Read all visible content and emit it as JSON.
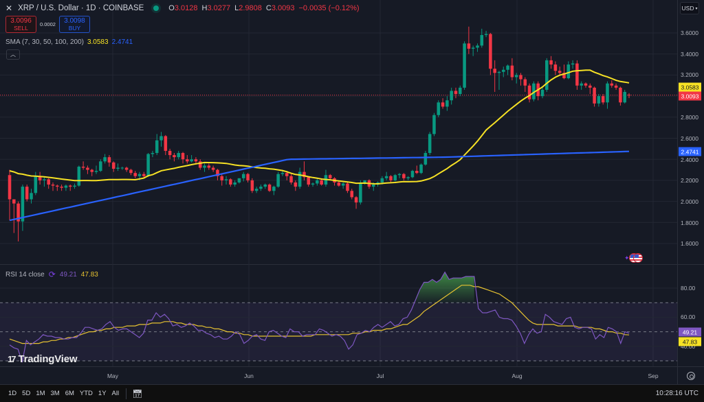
{
  "header": {
    "close_icon": "x-icon",
    "symbol_title": "XRP / U.S. Dollar · 1D · COINBASE",
    "market_status_icon": "market-open-dot",
    "ohlc": {
      "open_label": "O",
      "open": "3.0128",
      "high_label": "H",
      "high": "3.0277",
      "low_label": "L",
      "low": "2.9808",
      "close_label": "C",
      "close": "3.0093",
      "change": "−0.0035 (−0.12%)"
    }
  },
  "trade": {
    "sell_price": "3.0096",
    "sell_label": "SELL",
    "spread": "0.0002",
    "buy_price": "3.0098",
    "buy_label": "BUY"
  },
  "indicators": {
    "sma": {
      "label": "SMA (7, 30, 50, 100, 200)",
      "value1": "3.0583",
      "value2": "2.4741"
    },
    "collapse_icon": "chevron-up-icon",
    "rsi": {
      "label": "RSI 14 close",
      "icon": "loading-icon",
      "value": "49.21",
      "ma_value": "47.83"
    }
  },
  "currency_selector": {
    "label": "USD",
    "icon": "chevron-down-icon"
  },
  "price_axis": {
    "ticks": [
      "3.6000",
      "3.4000",
      "3.2000",
      "2.8000",
      "2.6000",
      "2.4000",
      "2.2000",
      "2.0000",
      "1.8000",
      "1.6000"
    ],
    "tags": {
      "sma_yellow": "3.0583",
      "last_price": "3.0093",
      "sma_blue": "2.4741"
    }
  },
  "rsi_axis": {
    "ticks": [
      "80.00",
      "60.00",
      "40.00"
    ],
    "tags": {
      "rsi": "49.21",
      "rsi_ma": "47.83"
    }
  },
  "time_axis": {
    "ticks": [
      "May",
      "Jun",
      "Jul",
      "Aug",
      "Sep"
    ]
  },
  "watermark": "TradingView",
  "bottom_bar": {
    "ranges": [
      "1D",
      "5D",
      "1M",
      "3M",
      "6M",
      "YTD",
      "1Y",
      "All"
    ],
    "goto_icon": "calendar-goto-icon",
    "clock": "10:28:16 UTC"
  },
  "colors": {
    "up": "#089981",
    "down": "#f23645",
    "sma_yellow": "#f7e225",
    "sma_blue": "#2962ff",
    "rsi_line": "#7e57c2",
    "rsi_ma": "#e6c231",
    "background": "#161a25",
    "grid": "#232733"
  },
  "chart_data": [
    {
      "type": "candlestick",
      "title": "XRP / U.S. Dollar · 1D · COINBASE",
      "ylabel": "USD",
      "ylim": [
        1.5,
        3.7
      ],
      "x_ticks": [
        "May",
        "Jun",
        "Jul",
        "Aug",
        "Sep"
      ],
      "grid": true,
      "last": {
        "open": 3.0128,
        "high": 3.0277,
        "low": 2.9808,
        "close": 3.0093
      },
      "ohlc": [
        [
          2.25,
          2.3,
          1.82,
          2.02
        ],
        [
          2.02,
          1.98,
          1.7,
          1.98
        ],
        [
          1.98,
          2.0,
          1.62,
          1.81
        ],
        [
          1.81,
          2.16,
          1.72,
          2.14
        ],
        [
          2.14,
          2.16,
          2.0,
          2.02
        ],
        [
          2.02,
          2.12,
          1.98,
          2.08
        ],
        [
          2.08,
          2.28,
          2.06,
          2.24
        ],
        [
          2.24,
          2.28,
          2.16,
          2.2
        ],
        [
          2.2,
          2.23,
          2.14,
          2.21
        ],
        [
          2.21,
          2.22,
          2.12,
          2.16
        ],
        [
          2.16,
          2.18,
          2.1,
          2.15
        ],
        [
          2.15,
          2.16,
          2.1,
          2.14
        ],
        [
          2.14,
          2.16,
          2.1,
          2.13
        ],
        [
          2.13,
          2.16,
          2.1,
          2.15
        ],
        [
          2.15,
          2.16,
          2.1,
          2.14
        ],
        [
          2.14,
          2.17,
          2.12,
          2.15
        ],
        [
          2.15,
          2.34,
          2.14,
          2.33
        ],
        [
          2.33,
          2.38,
          2.3,
          2.32
        ],
        [
          2.32,
          2.34,
          2.26,
          2.3
        ],
        [
          2.3,
          2.31,
          2.24,
          2.28
        ],
        [
          2.28,
          2.34,
          2.26,
          2.29
        ],
        [
          2.29,
          2.4,
          2.28,
          2.38
        ],
        [
          2.38,
          2.45,
          2.36,
          2.42
        ],
        [
          2.42,
          2.44,
          2.33,
          2.37
        ],
        [
          2.37,
          2.38,
          2.28,
          2.31
        ],
        [
          2.31,
          2.36,
          2.29,
          2.32
        ],
        [
          2.32,
          2.33,
          2.3,
          2.32
        ],
        [
          2.32,
          2.33,
          2.28,
          2.3
        ],
        [
          2.3,
          2.31,
          2.25,
          2.27
        ],
        [
          2.27,
          2.29,
          2.22,
          2.24
        ],
        [
          2.24,
          2.28,
          2.2,
          2.26
        ],
        [
          2.26,
          2.28,
          2.22,
          2.24
        ],
        [
          2.24,
          2.46,
          2.23,
          2.45
        ],
        [
          2.45,
          2.48,
          2.42,
          2.46
        ],
        [
          2.46,
          2.64,
          2.44,
          2.58
        ],
        [
          2.58,
          2.66,
          2.52,
          2.62
        ],
        [
          2.62,
          2.63,
          2.44,
          2.48
        ],
        [
          2.48,
          2.5,
          2.4,
          2.44
        ],
        [
          2.44,
          2.46,
          2.38,
          2.42
        ],
        [
          2.42,
          2.48,
          2.4,
          2.46
        ],
        [
          2.46,
          2.47,
          2.36,
          2.4
        ],
        [
          2.4,
          2.44,
          2.36,
          2.38
        ],
        [
          2.38,
          2.44,
          2.37,
          2.4
        ],
        [
          2.4,
          2.42,
          2.35,
          2.38
        ],
        [
          2.38,
          2.4,
          2.3,
          2.32
        ],
        [
          2.32,
          2.36,
          2.28,
          2.34
        ],
        [
          2.34,
          2.36,
          2.3,
          2.32
        ],
        [
          2.32,
          2.34,
          2.28,
          2.3
        ],
        [
          2.3,
          2.31,
          2.2,
          2.24
        ],
        [
          2.24,
          2.26,
          2.15,
          2.2
        ],
        [
          2.2,
          2.24,
          2.16,
          2.21
        ],
        [
          2.21,
          2.22,
          2.14,
          2.16
        ],
        [
          2.16,
          2.2,
          2.14,
          2.18
        ],
        [
          2.18,
          2.22,
          2.17,
          2.22
        ],
        [
          2.22,
          2.28,
          2.19,
          2.26
        ],
        [
          2.26,
          2.27,
          2.18,
          2.2
        ],
        [
          2.2,
          2.22,
          2.08,
          2.1
        ],
        [
          2.1,
          2.14,
          2.08,
          2.12
        ],
        [
          2.12,
          2.16,
          2.1,
          2.14
        ],
        [
          2.14,
          2.17,
          2.12,
          2.16
        ],
        [
          2.16,
          2.17,
          2.09,
          2.1
        ],
        [
          2.1,
          2.15,
          2.06,
          2.14
        ],
        [
          2.14,
          2.28,
          2.13,
          2.26
        ],
        [
          2.26,
          2.3,
          2.24,
          2.27
        ],
        [
          2.27,
          2.29,
          2.2,
          2.24
        ],
        [
          2.24,
          2.26,
          2.16,
          2.18
        ],
        [
          2.18,
          2.2,
          2.1,
          2.14
        ],
        [
          2.14,
          2.32,
          2.12,
          2.28
        ],
        [
          2.28,
          2.38,
          2.2,
          2.23
        ],
        [
          2.23,
          2.24,
          2.14,
          2.16
        ],
        [
          2.16,
          2.18,
          2.14,
          2.17
        ],
        [
          2.17,
          2.22,
          2.15,
          2.2
        ],
        [
          2.2,
          2.22,
          2.15,
          2.16
        ],
        [
          2.16,
          2.3,
          2.14,
          2.25
        ],
        [
          2.25,
          2.26,
          2.2,
          2.22
        ],
        [
          2.22,
          2.23,
          2.15,
          2.18
        ],
        [
          2.18,
          2.19,
          2.14,
          2.15
        ],
        [
          2.15,
          2.18,
          2.12,
          2.17
        ],
        [
          2.17,
          2.19,
          2.08,
          2.1
        ],
        [
          2.1,
          2.12,
          2.02,
          2.04
        ],
        [
          2.04,
          2.05,
          1.93,
          1.99
        ],
        [
          1.99,
          2.2,
          1.97,
          2.18
        ],
        [
          2.18,
          2.2,
          2.16,
          2.2
        ],
        [
          2.2,
          2.21,
          2.12,
          2.14
        ],
        [
          2.14,
          2.18,
          2.1,
          2.16
        ],
        [
          2.16,
          2.19,
          2.14,
          2.18
        ],
        [
          2.18,
          2.24,
          2.16,
          2.22
        ],
        [
          2.22,
          2.28,
          2.2,
          2.24
        ],
        [
          2.24,
          2.25,
          2.18,
          2.2
        ],
        [
          2.2,
          2.26,
          2.19,
          2.25
        ],
        [
          2.25,
          2.27,
          2.22,
          2.26
        ],
        [
          2.26,
          2.27,
          2.2,
          2.22
        ],
        [
          2.22,
          2.24,
          2.2,
          2.23
        ],
        [
          2.23,
          2.3,
          2.22,
          2.29
        ],
        [
          2.29,
          2.34,
          2.26,
          2.27
        ],
        [
          2.27,
          2.36,
          2.26,
          2.35
        ],
        [
          2.35,
          2.48,
          2.34,
          2.46
        ],
        [
          2.46,
          2.66,
          2.44,
          2.64
        ],
        [
          2.64,
          2.84,
          2.62,
          2.82
        ],
        [
          2.82,
          2.96,
          2.8,
          2.94
        ],
        [
          2.94,
          2.98,
          2.88,
          2.9
        ],
        [
          2.9,
          3.0,
          2.86,
          2.96
        ],
        [
          2.96,
          3.08,
          2.92,
          3.05
        ],
        [
          3.05,
          3.08,
          2.98,
          3.02
        ],
        [
          3.02,
          3.1,
          3.0,
          3.08
        ],
        [
          3.08,
          3.52,
          3.06,
          3.5
        ],
        [
          3.5,
          3.66,
          3.4,
          3.45
        ],
        [
          3.45,
          3.48,
          3.38,
          3.46
        ],
        [
          3.46,
          3.5,
          3.42,
          3.48
        ],
        [
          3.48,
          3.64,
          3.46,
          3.58
        ],
        [
          3.58,
          3.62,
          3.56,
          3.59
        ],
        [
          3.59,
          3.6,
          3.2,
          3.26
        ],
        [
          3.26,
          3.34,
          3.04,
          3.22
        ],
        [
          3.22,
          3.24,
          3.06,
          3.23
        ],
        [
          3.23,
          3.28,
          3.18,
          3.25
        ],
        [
          3.25,
          3.3,
          3.2,
          3.29
        ],
        [
          3.29,
          3.36,
          3.15,
          3.18
        ],
        [
          3.18,
          3.22,
          3.12,
          3.2
        ],
        [
          3.2,
          3.22,
          3.1,
          3.16
        ],
        [
          3.16,
          3.18,
          3.04,
          3.1
        ],
        [
          3.1,
          3.12,
          2.94,
          2.97
        ],
        [
          2.97,
          3.14,
          2.95,
          3.12
        ],
        [
          3.12,
          3.14,
          2.96,
          3.0
        ],
        [
          3.0,
          3.08,
          2.98,
          3.06
        ],
        [
          3.06,
          3.36,
          3.04,
          3.34
        ],
        [
          3.34,
          3.38,
          3.26,
          3.3
        ],
        [
          3.3,
          3.33,
          3.2,
          3.24
        ],
        [
          3.24,
          3.28,
          3.2,
          3.22
        ],
        [
          3.22,
          3.3,
          3.16,
          3.17
        ],
        [
          3.17,
          3.33,
          3.16,
          3.3
        ],
        [
          3.3,
          3.34,
          3.26,
          3.31
        ],
        [
          3.31,
          3.34,
          3.06,
          3.1
        ],
        [
          3.1,
          3.14,
          3.06,
          3.12
        ],
        [
          3.12,
          3.13,
          3.08,
          3.1
        ],
        [
          3.1,
          3.12,
          3.02,
          3.08
        ],
        [
          3.08,
          3.09,
          2.9,
          2.93
        ],
        [
          2.93,
          3.02,
          2.9,
          3.0
        ],
        [
          3.0,
          3.02,
          2.92,
          2.94
        ],
        [
          2.94,
          3.14,
          2.88,
          3.12
        ],
        [
          3.12,
          3.15,
          3.08,
          3.1
        ],
        [
          3.1,
          3.12,
          3.06,
          3.08
        ],
        [
          3.08,
          3.09,
          2.91,
          2.94
        ],
        [
          2.94,
          3.06,
          2.93,
          3.04
        ],
        [
          3.0128,
          3.0277,
          2.9808,
          3.0093
        ]
      ]
    },
    {
      "type": "line",
      "title": "RSI 14 close",
      "ylim": [
        25,
        95
      ],
      "bands": {
        "upper": 70,
        "middle": 50,
        "lower": 30
      },
      "series": [
        {
          "name": "RSI",
          "color": "#7e57c2",
          "last": 49.21,
          "values": [
            41,
            39,
            38,
            29,
            44,
            41,
            43,
            45,
            48,
            47,
            47,
            46,
            46,
            45,
            45,
            46,
            46,
            49,
            53,
            53,
            52,
            51,
            52,
            55,
            57,
            53,
            51,
            52,
            52,
            50,
            48,
            46,
            49,
            58,
            58,
            63,
            60,
            62,
            59,
            54,
            55,
            53,
            54,
            56,
            54,
            51,
            51,
            49,
            48,
            46,
            47,
            45,
            45,
            47,
            50,
            48,
            42,
            44,
            47,
            48,
            45,
            44,
            50,
            51,
            49,
            47,
            46,
            52,
            50,
            50,
            47,
            48,
            48,
            48,
            52,
            51,
            49,
            47,
            48,
            47,
            44,
            38,
            41,
            48,
            49,
            51,
            50,
            53,
            55,
            53,
            55,
            57,
            54,
            55,
            59,
            60,
            65,
            72,
            79,
            84,
            84,
            86,
            84,
            86,
            91,
            86,
            87,
            87,
            87,
            88,
            88,
            88,
            66,
            63,
            63,
            64,
            65,
            60,
            59,
            59,
            58,
            54,
            49,
            42,
            48,
            52,
            49,
            50,
            62,
            60,
            57,
            56,
            55,
            59,
            60,
            53,
            52,
            53,
            53,
            52,
            45,
            48,
            46,
            53,
            52,
            50,
            42,
            50,
            49
          ]
        },
        {
          "name": "RSI-based MA",
          "color": "#e6c231",
          "last": 47.83,
          "values": [
            45,
            44,
            43,
            42,
            42,
            42,
            42,
            42,
            43,
            43,
            44,
            44,
            45,
            45,
            46,
            46,
            47,
            48,
            49,
            50,
            50,
            51,
            51,
            52,
            52,
            53,
            53,
            53,
            54,
            54,
            54,
            55,
            55,
            55,
            56,
            56,
            56,
            57,
            57,
            57,
            56,
            56,
            55,
            55,
            55,
            54,
            54,
            53,
            53,
            52,
            52,
            51,
            50,
            50,
            49,
            49,
            48,
            48,
            47,
            47,
            47,
            47,
            47,
            47,
            47,
            47,
            47,
            47,
            47,
            47,
            47,
            47,
            47,
            48,
            48,
            48,
            48,
            48,
            48,
            48,
            48,
            48,
            49,
            49,
            49,
            50,
            50,
            51,
            51,
            51,
            52,
            52,
            53,
            54,
            55,
            55,
            57,
            59,
            61,
            64,
            66,
            68,
            70,
            72,
            74,
            76,
            78,
            80,
            82,
            82,
            82,
            81,
            81,
            80,
            79,
            78,
            77,
            76,
            74,
            72,
            70,
            67,
            64,
            61,
            58,
            56,
            55,
            55,
            55,
            55,
            55,
            54,
            54,
            54,
            54,
            54,
            53,
            53,
            53,
            53,
            52,
            52,
            51,
            50,
            50,
            49,
            49,
            48,
            47.83
          ]
        }
      ]
    }
  ]
}
